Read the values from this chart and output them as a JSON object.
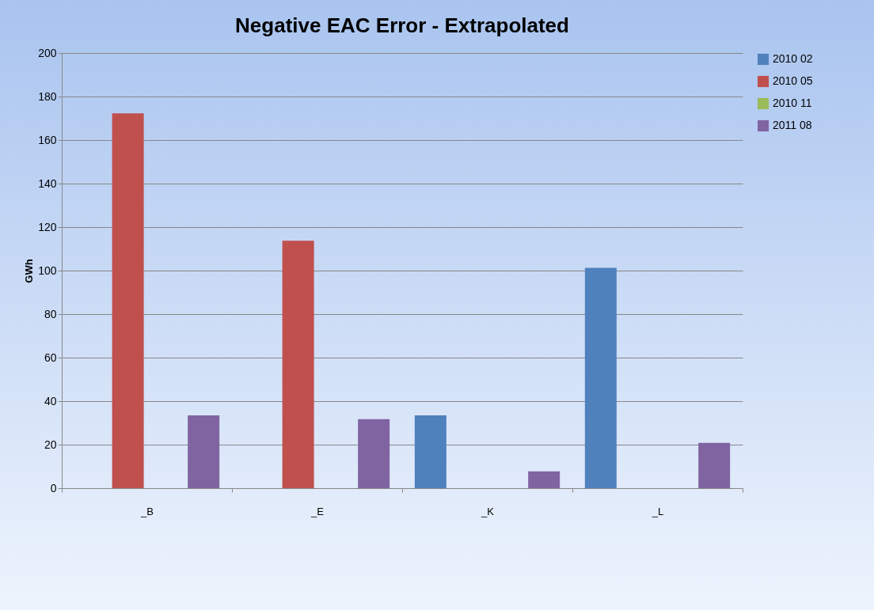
{
  "chart_data": {
    "type": "bar",
    "title": "Negative EAC Error - Extrapolated",
    "ylabel": "GWh",
    "categories": [
      "_B",
      "_E",
      "_K",
      "_L"
    ],
    "series": [
      {
        "name": "2010 02",
        "color": "#4f81bd",
        "values": [
          null,
          null,
          33.5,
          101.3
        ]
      },
      {
        "name": "2010 05",
        "color": "#c0504d",
        "values": [
          172.3,
          113.7,
          null,
          null
        ]
      },
      {
        "name": "2010 11",
        "color": "#9bbb59",
        "values": [
          null,
          null,
          null,
          null
        ]
      },
      {
        "name": "2011 08",
        "color": "#8064a2",
        "values": [
          33.5,
          31.7,
          7.7,
          20.8
        ]
      }
    ],
    "ylim": [
      0,
      200
    ],
    "yticks": [
      0,
      20,
      40,
      60,
      80,
      100,
      120,
      140,
      160,
      180,
      200
    ],
    "grid": "y",
    "legend": "right"
  }
}
